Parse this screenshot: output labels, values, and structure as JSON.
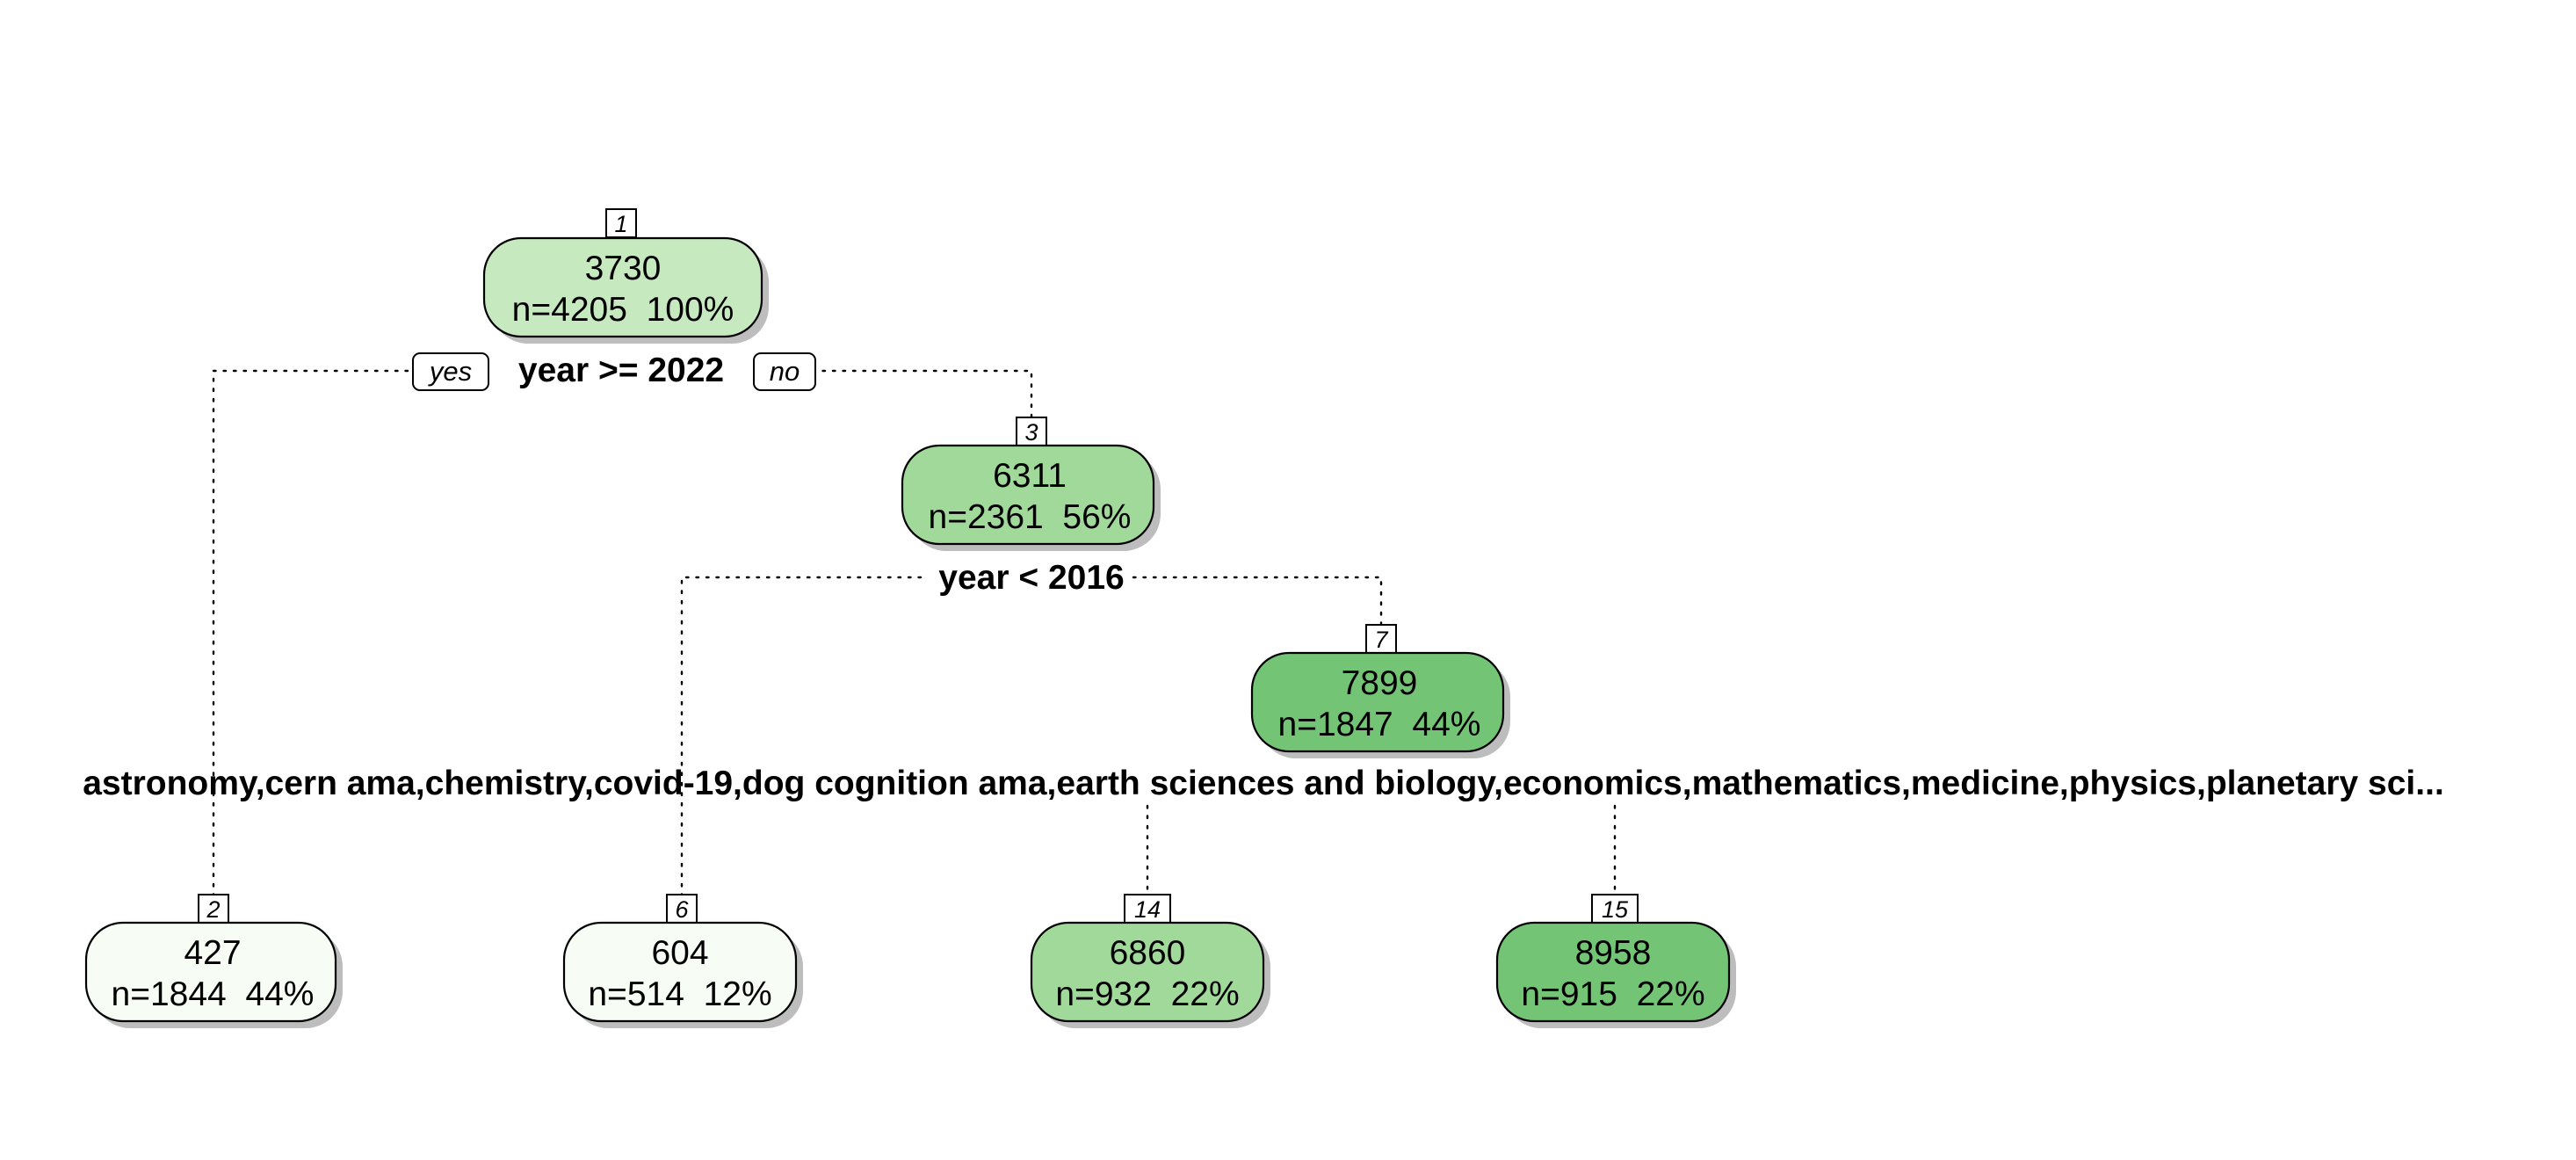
{
  "colors": {
    "node_1": "#c7e9c0",
    "node_3": "#a1d99b",
    "node_7": "#74c476",
    "node_2": "#f7fcf5",
    "node_6": "#f7fcf5",
    "node_14": "#a1d99b",
    "node_15": "#74c476"
  },
  "nodes": {
    "n1": {
      "id": "1",
      "value": "3730",
      "stats": "n=4205  100%"
    },
    "n3": {
      "id": "3",
      "value": "6311",
      "stats": "n=2361  56%"
    },
    "n7": {
      "id": "7",
      "value": "7899",
      "stats": "n=1847  44%"
    },
    "n2": {
      "id": "2",
      "value": "427",
      "stats": "n=1844  44%"
    },
    "n6": {
      "id": "6",
      "value": "604",
      "stats": "n=514  12%"
    },
    "n14": {
      "id": "14",
      "value": "6860",
      "stats": "n=932  22%"
    },
    "n15": {
      "id": "15",
      "value": "8958",
      "stats": "n=915  22%"
    }
  },
  "splits": {
    "s1": {
      "label": "year >= 2022",
      "yes": "yes",
      "no": "no"
    },
    "s3": {
      "label": "year < 2016"
    },
    "s7": {
      "label": "astronomy,cern ama,chemistry,covid-19,dog cognition ama,earth sciences and biology,economics,mathematics,medicine,physics,planetary sci..."
    }
  }
}
